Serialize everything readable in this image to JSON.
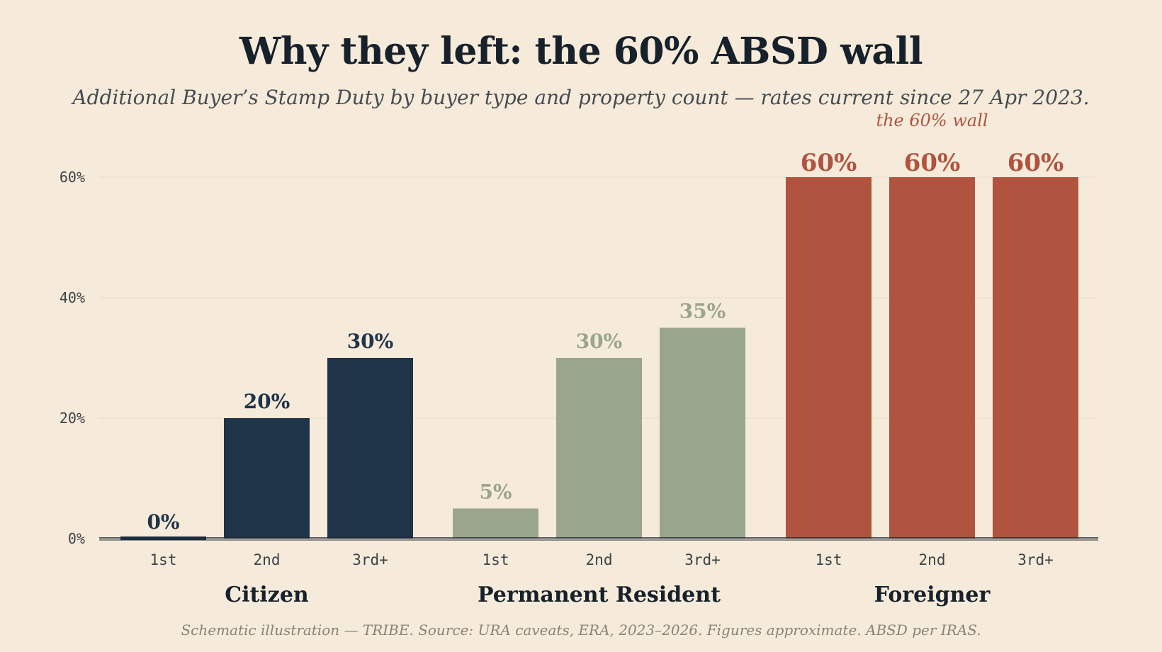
{
  "chart_data": {
    "type": "bar",
    "title": "Why they left: the 60% ABSD wall",
    "subtitle": "Additional Buyer’s Stamp Duty by buyer type and property count — rates current since 27 Apr 2023.",
    "footnote": "Schematic illustration — TRIBE. Source: URA caveats, ERA, 2023–2026. Figures approximate. ABSD per IRAS.",
    "annotation": "the 60% wall",
    "ylim": [
      0,
      60
    ],
    "yticks": [
      {
        "value": 0,
        "label": "0%"
      },
      {
        "value": 20,
        "label": "20%"
      },
      {
        "value": 40,
        "label": "40%"
      },
      {
        "value": 60,
        "label": "60%"
      }
    ],
    "grid": true,
    "groups": [
      {
        "name": "Citizen",
        "color": "#1f3349",
        "bars": [
          {
            "category": "1st",
            "value": 0,
            "label": "0%"
          },
          {
            "category": "2nd",
            "value": 20,
            "label": "20%"
          },
          {
            "category": "3rd+",
            "value": 30,
            "label": "30%"
          }
        ]
      },
      {
        "name": "Permanent Resident",
        "color": "#99a58c",
        "bars": [
          {
            "category": "1st",
            "value": 5,
            "label": "5%"
          },
          {
            "category": "2nd",
            "value": 30,
            "label": "30%"
          },
          {
            "category": "3rd+",
            "value": 35,
            "label": "35%"
          }
        ]
      },
      {
        "name": "Foreigner",
        "color": "#b0533f",
        "bars": [
          {
            "category": "1st",
            "value": 60,
            "label": "60%"
          },
          {
            "category": "2nd",
            "value": 60,
            "label": "60%"
          },
          {
            "category": "3rd+",
            "value": 60,
            "label": "60%"
          }
        ]
      }
    ]
  }
}
